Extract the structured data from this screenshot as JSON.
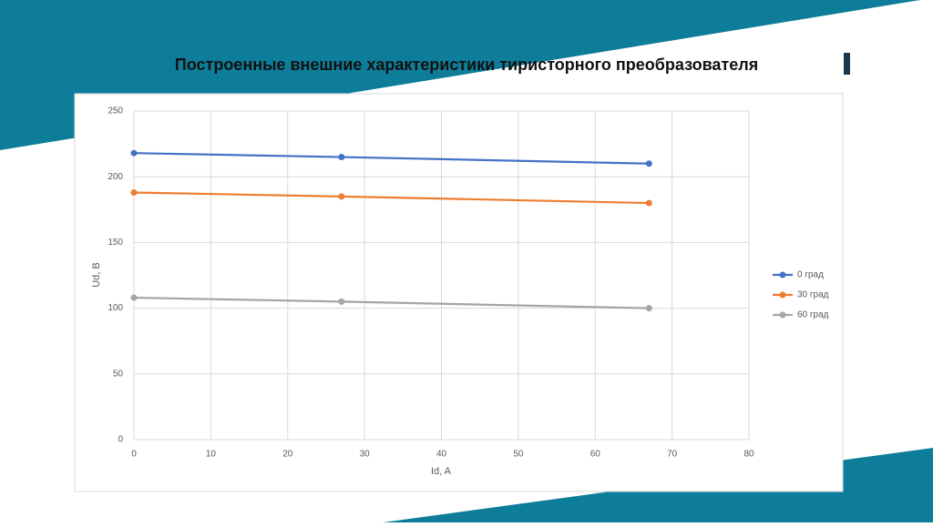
{
  "chart_data": {
    "type": "line",
    "title": "Построенные внешние характеристики тиристорного преобразователя",
    "x_label": "Id, A",
    "y_label": "Ud, B",
    "x": [
      0,
      27,
      67
    ],
    "series": [
      {
        "name": "0 град",
        "color": "#4472c4",
        "values": [
          218,
          215,
          210
        ]
      },
      {
        "name": "30 град",
        "color": "#ed7d31",
        "values": [
          188,
          185,
          180
        ]
      },
      {
        "name": "60 град",
        "color": "#a5a5a5",
        "values": [
          108,
          105,
          100
        ]
      }
    ],
    "xlim": [
      0,
      80
    ],
    "xticks": [
      0,
      10,
      20,
      30,
      40,
      50,
      60,
      70,
      80
    ],
    "ylim": [
      0,
      250
    ],
    "yticks": [
      0,
      50,
      100,
      150,
      200,
      250
    ],
    "grid": true,
    "legend": "right"
  }
}
